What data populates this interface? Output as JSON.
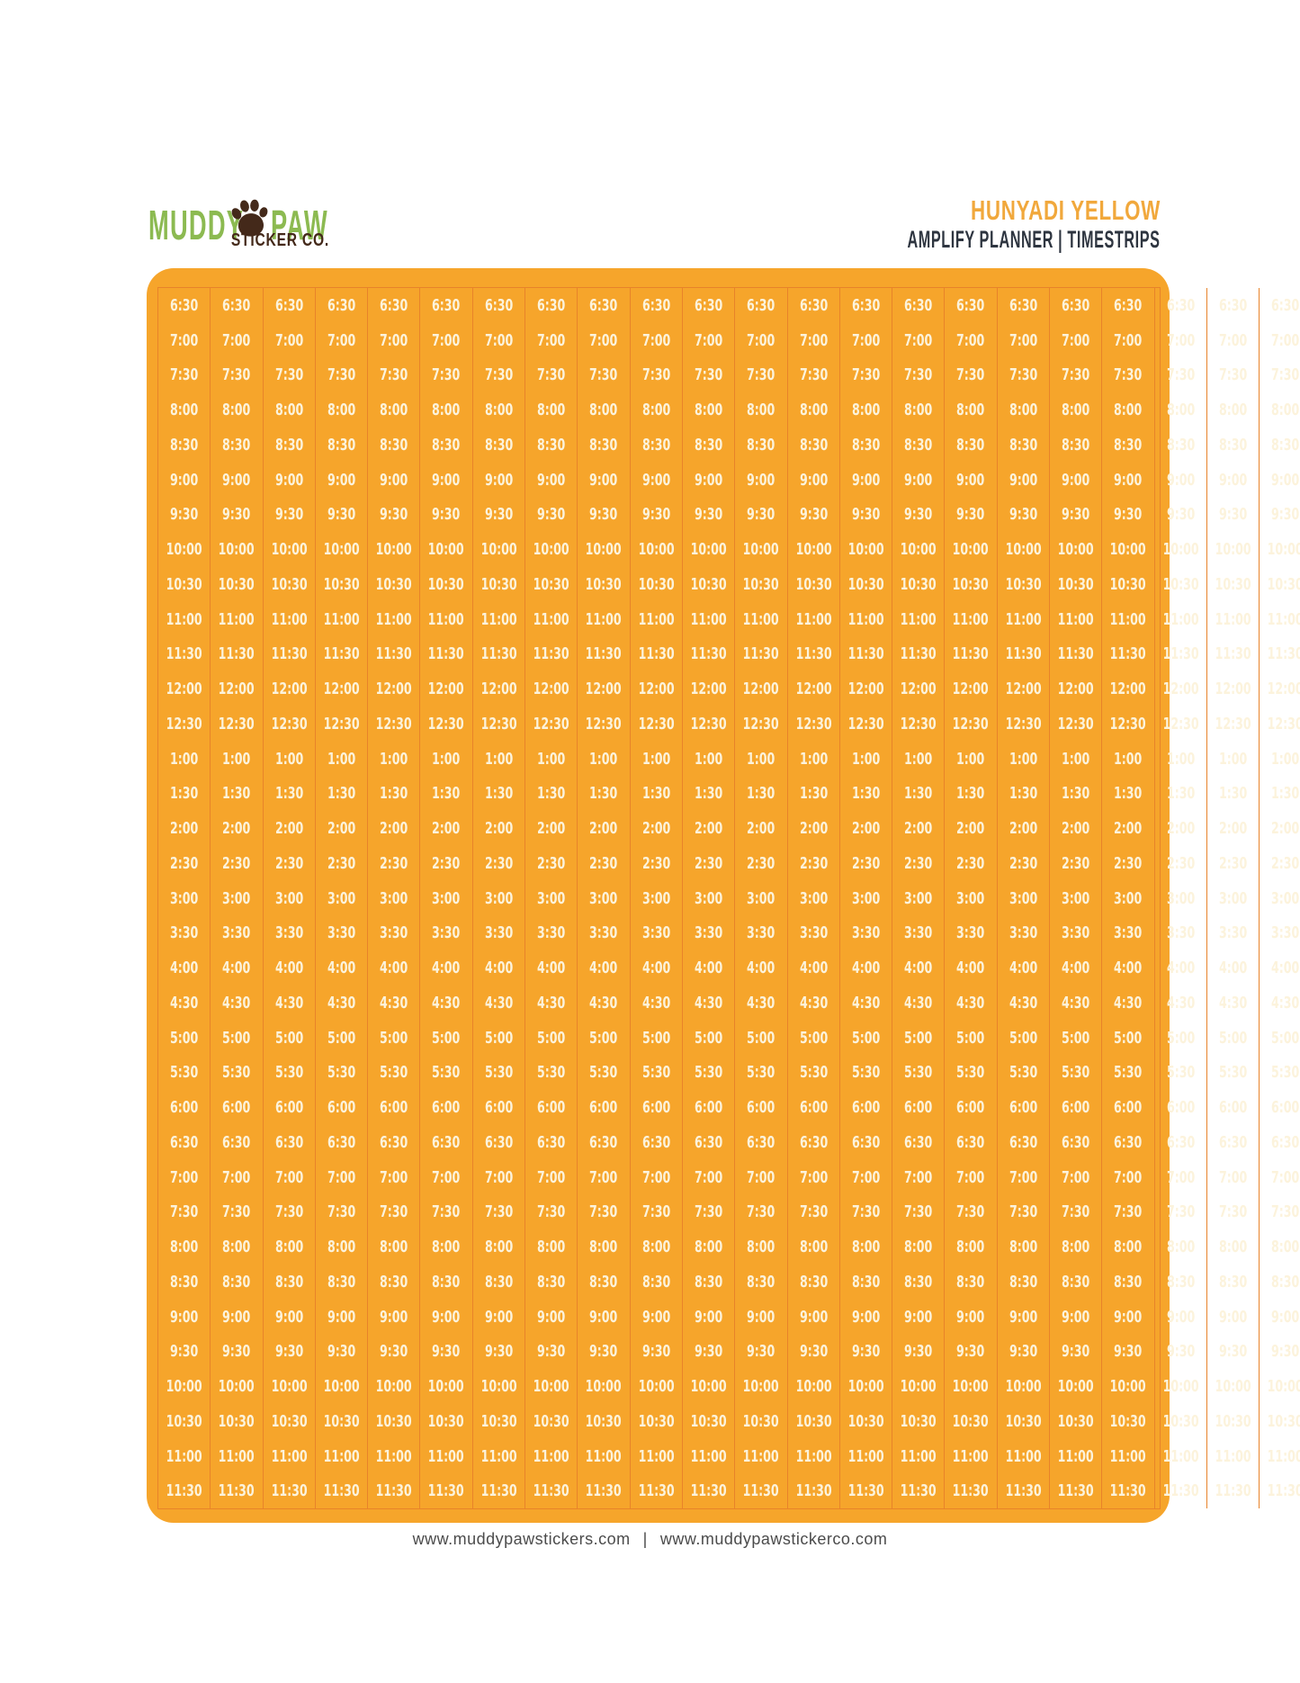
{
  "header": {
    "logo": {
      "word1": "MUDDY",
      "word2": "PAW",
      "subtitle": "STICKER CO."
    },
    "product": {
      "color_name": "HUNYADI YELLOW",
      "line2": "AMPLIFY PLANNER | TIMESTRIPS"
    }
  },
  "sheet": {
    "columns": 24,
    "rows": 35,
    "times": [
      "6:30",
      "7:00",
      "7:30",
      "8:00",
      "8:30",
      "9:00",
      "9:30",
      "10:00",
      "10:30",
      "11:00",
      "11:30",
      "12:00",
      "12:30",
      "1:00",
      "1:30",
      "2:00",
      "2:30",
      "3:00",
      "3:30",
      "4:00",
      "4:30",
      "5:00",
      "5:30",
      "6:00",
      "6:30",
      "7:00",
      "7:30",
      "8:00",
      "8:30",
      "9:00",
      "9:30",
      "10:00",
      "10:30",
      "11:00",
      "11:30"
    ]
  },
  "footer": {
    "url_left": "www.muddypawstickers.com",
    "separator": "|",
    "url_right": "www.muddypawstickerco.com"
  },
  "colors": {
    "sheet_orange": "#F6A52B",
    "grid_line": "#E8832A",
    "time_text": "#FCF3DC",
    "accent_orange": "#F1A83C",
    "dark_text": "#2E3540",
    "logo_green": "#8CBA51",
    "paw_brown": "#44291A",
    "footer_text": "#4B4B4B"
  }
}
